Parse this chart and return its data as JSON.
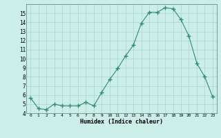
{
  "x": [
    0,
    1,
    2,
    3,
    4,
    5,
    6,
    7,
    8,
    9,
    10,
    11,
    12,
    13,
    14,
    15,
    16,
    17,
    18,
    19,
    20,
    21,
    22,
    23
  ],
  "y": [
    5.7,
    4.5,
    4.4,
    5.0,
    4.8,
    4.8,
    4.8,
    5.2,
    4.8,
    6.3,
    7.7,
    8.9,
    10.3,
    11.5,
    13.9,
    15.1,
    15.1,
    15.6,
    15.5,
    14.3,
    12.5,
    9.5,
    8.0,
    5.8
  ],
  "title": "",
  "xlabel": "Humidex (Indice chaleur)",
  "ylabel": "",
  "xlim": [
    -0.5,
    23.5
  ],
  "ylim": [
    4,
    16
  ],
  "yticks": [
    4,
    5,
    6,
    7,
    8,
    9,
    10,
    11,
    12,
    13,
    14,
    15
  ],
  "xticks": [
    0,
    1,
    2,
    3,
    4,
    5,
    6,
    7,
    8,
    9,
    10,
    11,
    12,
    13,
    14,
    15,
    16,
    17,
    18,
    19,
    20,
    21,
    22,
    23
  ],
  "xtick_labels": [
    "0",
    "1",
    "2",
    "3",
    "4",
    "5",
    "6",
    "7",
    "8",
    "9",
    "10",
    "11",
    "12",
    "13",
    "14",
    "15",
    "16",
    "17",
    "18",
    "19",
    "20",
    "21",
    "22",
    "23"
  ],
  "line_color": "#2e8b6e",
  "marker": "+",
  "marker_size": 4,
  "bg_color": "#cceee8",
  "grid_major_color": "#aad4ce",
  "grid_minor_color": "#bbddd8"
}
